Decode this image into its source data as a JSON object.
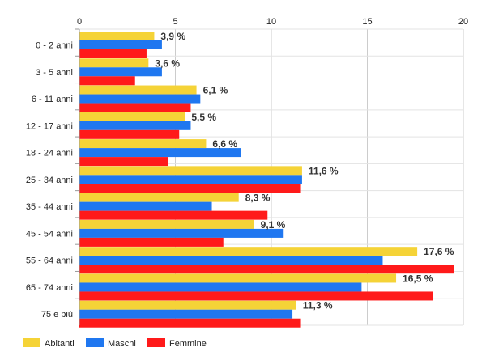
{
  "chart_data": {
    "type": "bar",
    "orientation": "horizontal",
    "title": "",
    "xlabel": "",
    "ylabel": "",
    "xlim": [
      0,
      20
    ],
    "x_ticks": [
      0,
      5,
      10,
      15,
      20
    ],
    "grid": true,
    "legend_position": "bottom-left",
    "categories": [
      "0 - 2 anni",
      "3 - 5 anni",
      "6 - 11 anni",
      "12 - 17 anni",
      "18 - 24 anni",
      "25 - 34 anni",
      "35 - 44 anni",
      "45 - 54 anni",
      "55 - 64 anni",
      "65 - 74 anni",
      "75 e più"
    ],
    "series": [
      {
        "name": "Abitanti",
        "color": "#f5d337",
        "values": [
          3.9,
          3.6,
          6.1,
          5.5,
          6.6,
          11.6,
          8.3,
          9.1,
          17.6,
          16.5,
          11.3
        ],
        "data_labels": [
          "3,9 %",
          "3,6 %",
          "6,1 %",
          "5,5 %",
          "6,6 %",
          "11,6 %",
          "8,3 %",
          "9,1 %",
          "17,6 %",
          "16,5 %",
          "11,3 %"
        ]
      },
      {
        "name": "Maschi",
        "color": "#1f77f0",
        "values": [
          4.3,
          4.3,
          6.3,
          5.8,
          8.4,
          11.6,
          6.9,
          10.6,
          15.8,
          14.7,
          11.1
        ]
      },
      {
        "name": "Femmine",
        "color": "#ff1a1a",
        "values": [
          3.5,
          2.9,
          5.8,
          5.2,
          4.6,
          11.5,
          9.8,
          7.5,
          19.5,
          18.4,
          11.5
        ]
      }
    ]
  }
}
